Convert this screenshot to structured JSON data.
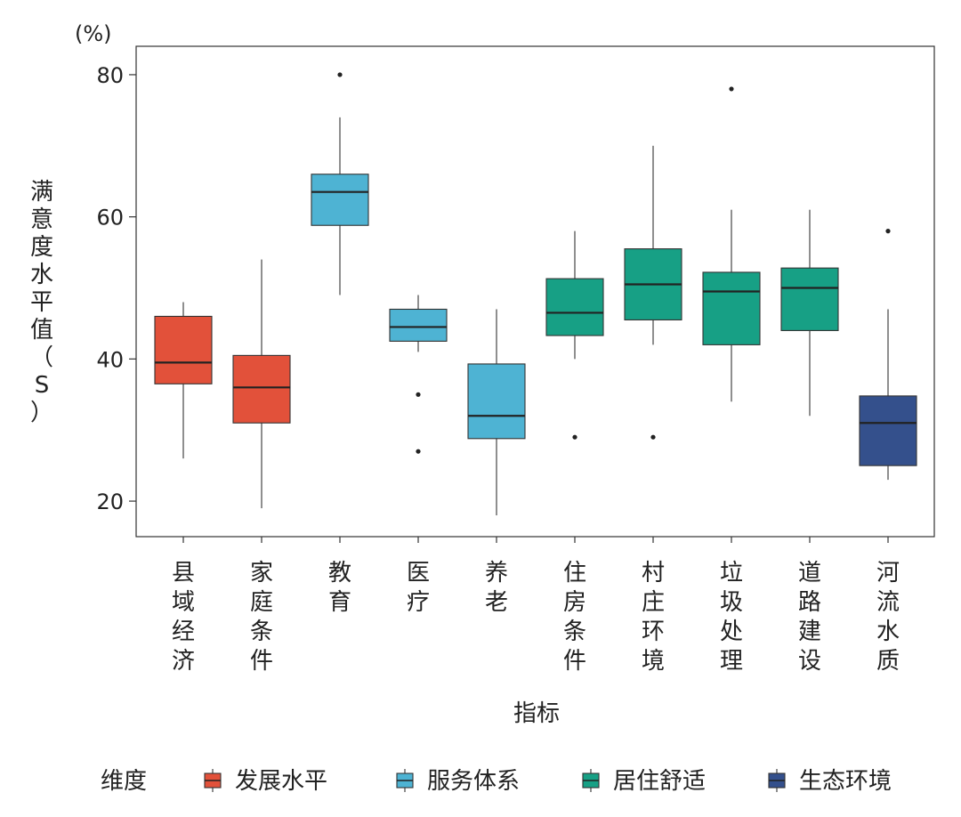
{
  "chart_data": {
    "type": "box",
    "title": "",
    "unit": "(%)",
    "ylabel": "满意度水平值（S）",
    "xlabel": "指标",
    "ylim": [
      15,
      84
    ],
    "yticks": [
      20,
      40,
      60,
      80
    ],
    "grid": false,
    "legend": {
      "title": "维度",
      "position": "bottom",
      "entries": [
        {
          "name": "发展水平",
          "color": "#E2513A"
        },
        {
          "name": "服务体系",
          "color": "#4EB3D3"
        },
        {
          "name": "居住舒适",
          "color": "#17A085"
        },
        {
          "name": "生态环境",
          "color": "#34508C"
        }
      ]
    },
    "categories": [
      "县域经济",
      "家庭条件",
      "教育",
      "医疗",
      "养老",
      "住房条件",
      "村庄环境",
      "垃圾处理",
      "道路建设",
      "河流水质"
    ],
    "boxes": [
      {
        "category": "县域经济",
        "group": "发展水平",
        "whisker_low": 26,
        "q1": 36.5,
        "median": 39.5,
        "q3": 46,
        "whisker_high": 48,
        "outliers": []
      },
      {
        "category": "家庭条件",
        "group": "发展水平",
        "whisker_low": 19,
        "q1": 31,
        "median": 36,
        "q3": 40.5,
        "whisker_high": 54,
        "outliers": []
      },
      {
        "category": "教育",
        "group": "服务体系",
        "whisker_low": 49,
        "q1": 58.8,
        "median": 63.5,
        "q3": 66,
        "whisker_high": 74,
        "outliers": [
          80
        ]
      },
      {
        "category": "医疗",
        "group": "服务体系",
        "whisker_low": 41,
        "q1": 42.5,
        "median": 44.5,
        "q3": 47,
        "whisker_high": 49,
        "outliers": [
          35,
          27
        ]
      },
      {
        "category": "养老",
        "group": "服务体系",
        "whisker_low": 18,
        "q1": 28.8,
        "median": 32,
        "q3": 39.3,
        "whisker_high": 47,
        "outliers": []
      },
      {
        "category": "住房条件",
        "group": "居住舒适",
        "whisker_low": 40,
        "q1": 43.3,
        "median": 46.5,
        "q3": 51.3,
        "whisker_high": 58,
        "outliers": [
          29
        ]
      },
      {
        "category": "村庄环境",
        "group": "居住舒适",
        "whisker_low": 42,
        "q1": 45.5,
        "median": 50.5,
        "q3": 55.5,
        "whisker_high": 70,
        "outliers": [
          29
        ]
      },
      {
        "category": "垃圾处理",
        "group": "居住舒适",
        "whisker_low": 34,
        "q1": 42,
        "median": 49.5,
        "q3": 52.2,
        "whisker_high": 61,
        "outliers": [
          78
        ]
      },
      {
        "category": "道路建设",
        "group": "居住舒适",
        "whisker_low": 32,
        "q1": 44,
        "median": 50,
        "q3": 52.8,
        "whisker_high": 61,
        "outliers": []
      },
      {
        "category": "河流水质",
        "group": "生态环境",
        "whisker_low": 23,
        "q1": 25,
        "median": 31,
        "q3": 34.8,
        "whisker_high": 47,
        "outliers": [
          58
        ]
      }
    ]
  }
}
